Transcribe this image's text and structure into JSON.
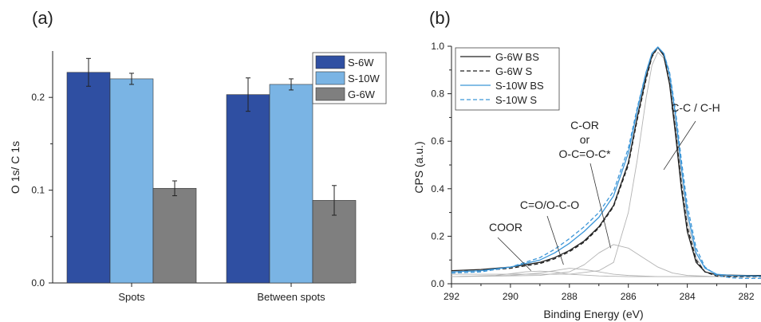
{
  "colors": {
    "s6w": "#2f4fa2",
    "s10w": "#7ab4e4",
    "g6w": "#7f7f7f",
    "g6w_line": "#222222",
    "s10w_line": "#3c96d8",
    "fit_line": "#b3b3b3"
  },
  "chart_data": [
    {
      "type": "bar",
      "panel_label": "(a)",
      "ylabel": "O 1s/ C 1s",
      "xlabel": "",
      "ylim": [
        0,
        0.25
      ],
      "yticks": [
        0.0,
        0.1,
        0.2
      ],
      "ytick_labels": [
        "0.0",
        "0.1",
        "0.2"
      ],
      "categories": [
        "Spots",
        "Between spots"
      ],
      "legend_position": "top-right",
      "series": [
        {
          "name": "S-6W",
          "values": [
            0.227,
            0.203
          ],
          "errors": [
            0.015,
            0.018
          ]
        },
        {
          "name": "S-10W",
          "values": [
            0.22,
            0.214
          ],
          "errors": [
            0.006,
            0.006
          ]
        },
        {
          "name": "G-6W",
          "values": [
            0.102,
            0.089
          ],
          "errors": [
            0.008,
            0.016
          ]
        }
      ]
    },
    {
      "type": "line",
      "panel_label": "(b)",
      "xlabel": "Binding Energy (eV)",
      "ylabel": "CPS (a.u.)",
      "xlim": [
        292,
        281.5
      ],
      "ylim": [
        0,
        1.0
      ],
      "x_reversed": true,
      "xticks": [
        292,
        290,
        288,
        286,
        284,
        282
      ],
      "xtick_labels": [
        "292",
        "290",
        "288",
        "286",
        "284",
        "282"
      ],
      "yticks": [
        0.0,
        0.2,
        0.4,
        0.6,
        0.8,
        1.0
      ],
      "ytick_labels": [
        "0.0",
        "0.2",
        "0.4",
        "0.6",
        "0.8",
        "1.0"
      ],
      "legend_position": "top-left",
      "series": [
        {
          "name": "G-6W BS",
          "style": "solid",
          "color": "#222222",
          "x": [
            292,
            291,
            290,
            289,
            288.5,
            288,
            287.5,
            287,
            286.5,
            286,
            285.7,
            285.4,
            285.2,
            285,
            284.8,
            284.6,
            284.4,
            284.2,
            284,
            283.7,
            283.4,
            283,
            282.5,
            282,
            281.5
          ],
          "y": [
            0.055,
            0.06,
            0.07,
            0.09,
            0.11,
            0.14,
            0.18,
            0.24,
            0.33,
            0.51,
            0.7,
            0.87,
            0.96,
            0.995,
            0.96,
            0.84,
            0.63,
            0.4,
            0.22,
            0.09,
            0.05,
            0.038,
            0.036,
            0.035,
            0.035
          ]
        },
        {
          "name": "G-6W S",
          "style": "dashed",
          "color": "#222222",
          "x": [
            292,
            291,
            290,
            289,
            288.5,
            288,
            287.5,
            287,
            286.5,
            286,
            285.7,
            285.4,
            285.2,
            285,
            284.8,
            284.6,
            284.4,
            284.2,
            284,
            283.7,
            283.4,
            283,
            282.5,
            282,
            281.5
          ],
          "y": [
            0.05,
            0.055,
            0.065,
            0.085,
            0.105,
            0.135,
            0.175,
            0.235,
            0.325,
            0.5,
            0.69,
            0.86,
            0.955,
            0.995,
            0.965,
            0.85,
            0.65,
            0.42,
            0.24,
            0.1,
            0.05,
            0.032,
            0.03,
            0.03,
            0.03
          ]
        },
        {
          "name": "S-10W BS",
          "style": "solid",
          "color": "#3c96d8",
          "x": [
            292,
            291,
            290,
            289,
            288.5,
            288,
            287.5,
            287,
            286.5,
            286,
            285.7,
            285.4,
            285.2,
            285,
            284.8,
            284.6,
            284.4,
            284.2,
            284,
            283.7,
            283.4,
            283,
            282.5,
            282,
            281.5
          ],
          "y": [
            0.05,
            0.055,
            0.07,
            0.1,
            0.13,
            0.17,
            0.22,
            0.28,
            0.37,
            0.55,
            0.73,
            0.89,
            0.97,
            0.997,
            0.97,
            0.88,
            0.71,
            0.49,
            0.3,
            0.13,
            0.065,
            0.04,
            0.035,
            0.033,
            0.032
          ]
        },
        {
          "name": "S-10W S",
          "style": "dashed",
          "color": "#3c96d8",
          "x": [
            292,
            291,
            290,
            289,
            288.5,
            288,
            287.5,
            287,
            286.5,
            286,
            285.7,
            285.4,
            285.2,
            285,
            284.8,
            284.6,
            284.4,
            284.2,
            284,
            283.7,
            283.4,
            283,
            282.5,
            282,
            281.5
          ],
          "y": [
            0.045,
            0.05,
            0.07,
            0.11,
            0.145,
            0.19,
            0.24,
            0.3,
            0.39,
            0.57,
            0.74,
            0.89,
            0.97,
            0.995,
            0.97,
            0.89,
            0.73,
            0.52,
            0.33,
            0.15,
            0.07,
            0.035,
            0.025,
            0.022,
            0.022
          ]
        },
        {
          "name": "",
          "style": "fit",
          "color": "#b3b3b3",
          "x": [
            292,
            290,
            288,
            287,
            286.5,
            286,
            285.7,
            285.4,
            285.2,
            285,
            284.8,
            284.6,
            284.4,
            284.2,
            284,
            283.7,
            283.4,
            283,
            282,
            281.5
          ],
          "y": [
            0.04,
            0.04,
            0.04,
            0.055,
            0.09,
            0.3,
            0.52,
            0.78,
            0.92,
            0.975,
            0.95,
            0.85,
            0.67,
            0.45,
            0.27,
            0.11,
            0.05,
            0.035,
            0.03,
            0.03
          ]
        },
        {
          "name": "",
          "style": "fit",
          "color": "#b3b3b3",
          "x": [
            292,
            289,
            288,
            287.5,
            287,
            286.5,
            286,
            285.5,
            285,
            284.5,
            284,
            283,
            282,
            281.5
          ],
          "y": [
            0.03,
            0.035,
            0.05,
            0.08,
            0.13,
            0.165,
            0.15,
            0.11,
            0.07,
            0.045,
            0.035,
            0.03,
            0.03,
            0.03
          ]
        },
        {
          "name": "",
          "style": "fit",
          "color": "#b3b3b3",
          "x": [
            292,
            290,
            289,
            288.5,
            288,
            287.5,
            287,
            286.5,
            286,
            285,
            284,
            282,
            281.5
          ],
          "y": [
            0.03,
            0.035,
            0.045,
            0.055,
            0.065,
            0.06,
            0.05,
            0.04,
            0.035,
            0.03,
            0.03,
            0.03,
            0.03
          ]
        },
        {
          "name": "",
          "style": "fit",
          "color": "#b3b3b3",
          "x": [
            292,
            290.5,
            290,
            289.5,
            289,
            288.5,
            288,
            287,
            286,
            284,
            281.5
          ],
          "y": [
            0.03,
            0.035,
            0.042,
            0.05,
            0.053,
            0.05,
            0.04,
            0.033,
            0.03,
            0.03,
            0.03
          ]
        }
      ],
      "annotations": [
        {
          "text": "COOR",
          "target": [
            289.3,
            0.055
          ]
        },
        {
          "text": "C=O/O-C-O",
          "target": [
            288.2,
            0.08
          ]
        },
        {
          "lines": [
            "C-OR",
            "or",
            "O-C=O-C*"
          ],
          "target": [
            286.6,
            0.15
          ]
        },
        {
          "text": "C-C / C-H",
          "target": [
            284.8,
            0.48
          ]
        }
      ]
    }
  ]
}
